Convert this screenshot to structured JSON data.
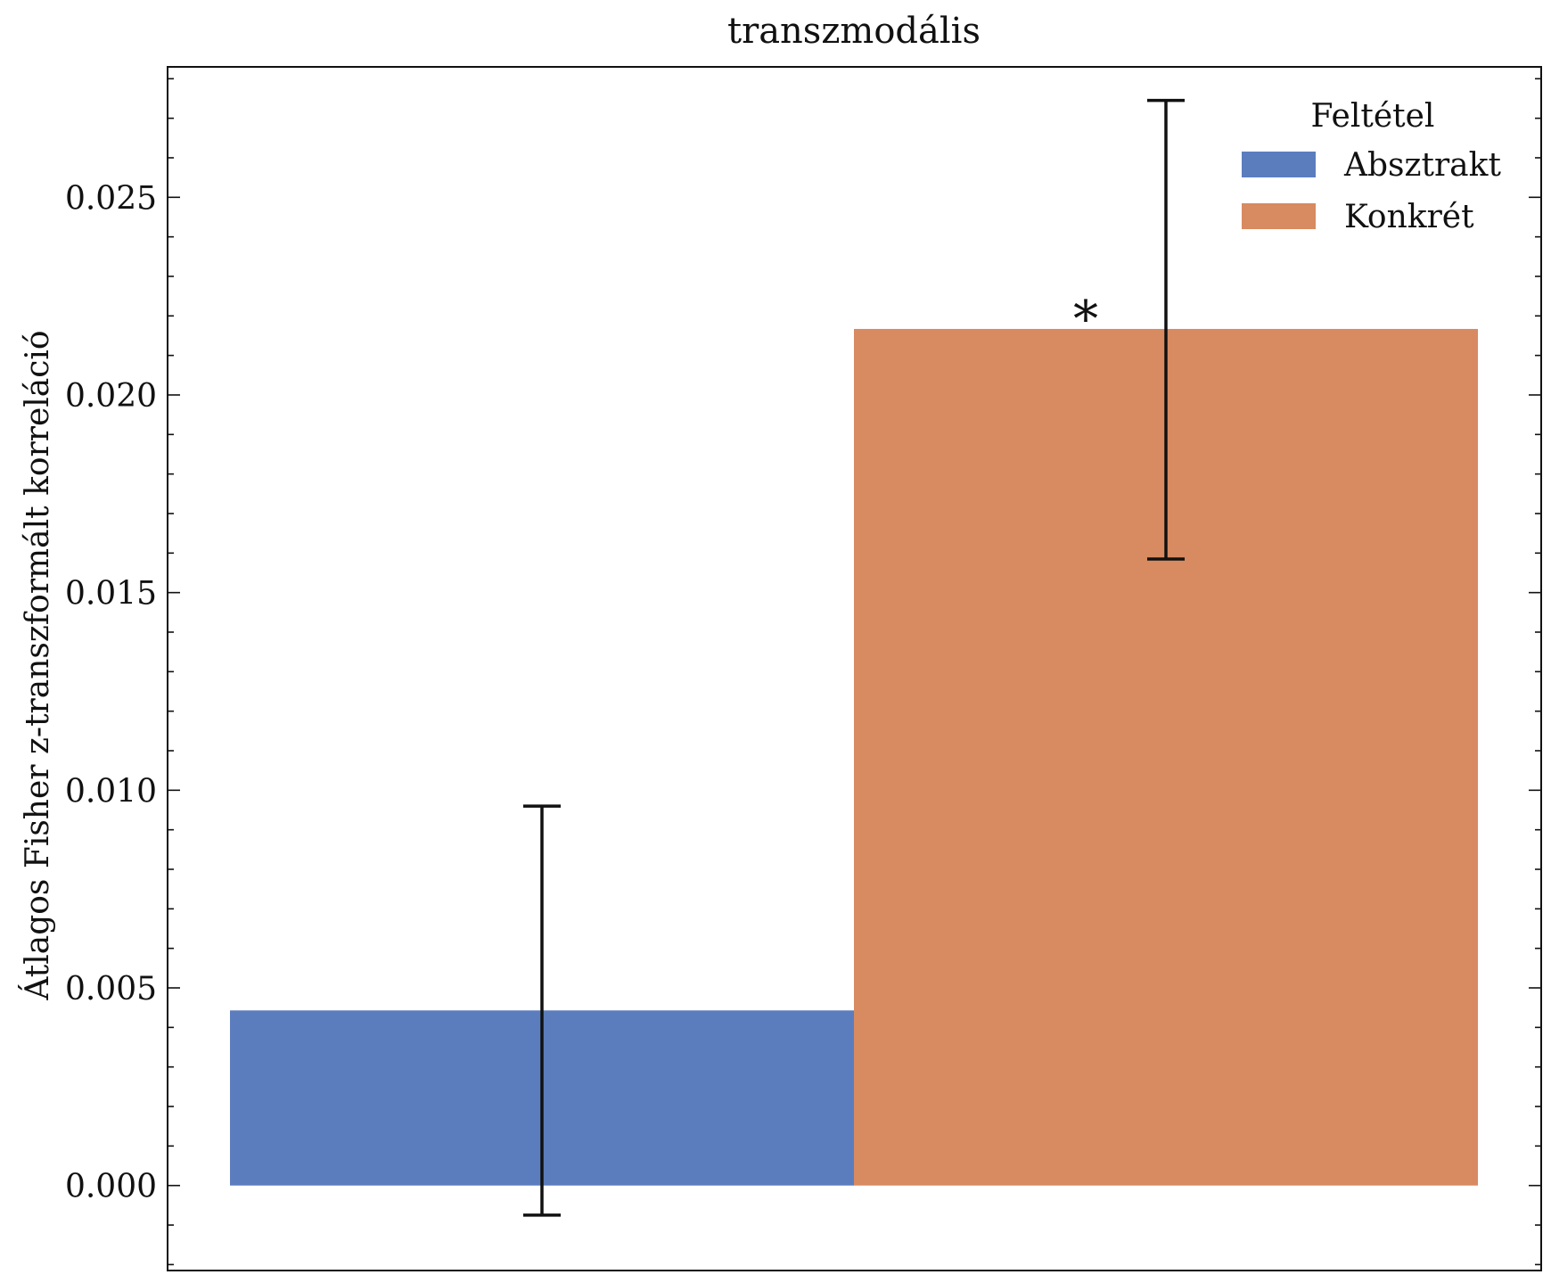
{
  "chart_data": {
    "type": "bar",
    "title": "transzmodális",
    "xlabel": "",
    "ylabel": "Átlagos Fisher z-transzformált korreláció",
    "ylim": [
      -0.00215,
      0.0283
    ],
    "yticks": [
      "0.000",
      "0.005",
      "0.010",
      "0.015",
      "0.020",
      "0.025"
    ],
    "grid": false,
    "legend": {
      "title": "Feltétel",
      "placement": "top-right"
    },
    "series": [
      {
        "name": "Absztrakt",
        "value": 0.00443,
        "error_low": -0.00075,
        "error_high": 0.0096,
        "color": "#5b7dbe",
        "annotation": ""
      },
      {
        "name": "Konkrét",
        "value": 0.02167,
        "error_low": 0.01585,
        "error_high": 0.02745,
        "color": "#d88a61",
        "annotation": "*"
      }
    ]
  }
}
